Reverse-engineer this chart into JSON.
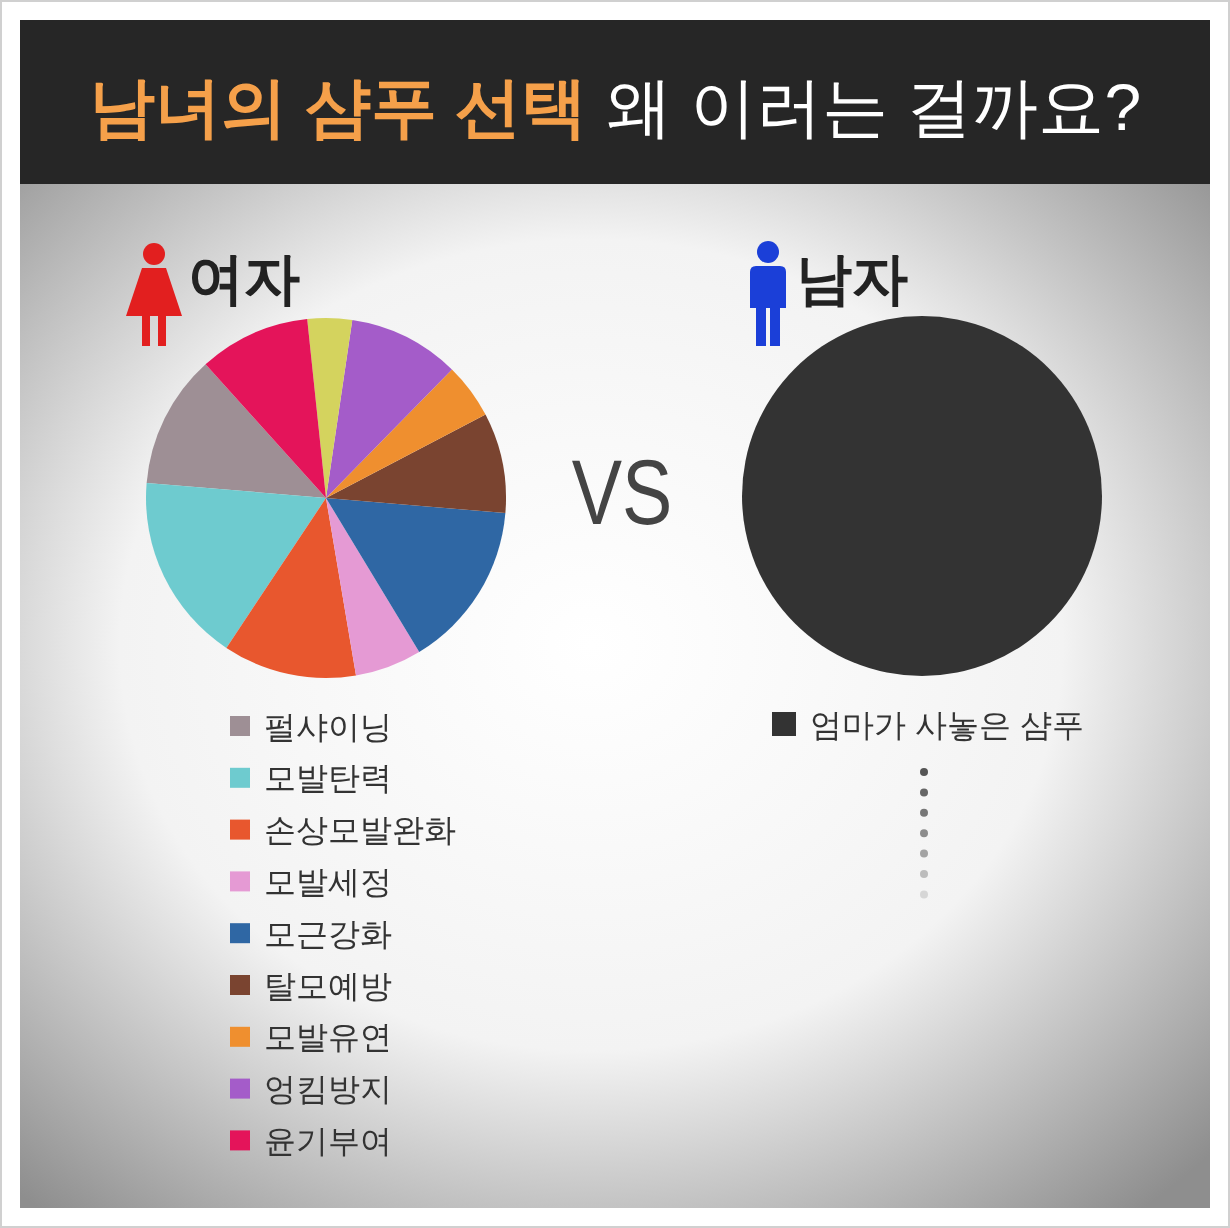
{
  "chart_data": [
    {
      "type": "other",
      "title": "**남녀의 샴푸 선택** 왜 이러는 걸까요?"
    },
    {
      "type": "pie",
      "title": "여자",
      "categories": [
        "펄샤이닝",
        "모발탄력",
        "손상모발완화",
        "모발세정",
        "모근강화",
        "탈모예방",
        "모발유연",
        "엉킴방지",
        null,
        "윤기부여"
      ],
      "values": [
        12,
        17,
        12,
        6,
        15,
        9,
        5,
        10,
        4,
        10
      ],
      "colors": [
        "#9e8f95",
        "#6ecbcf",
        "#e8572e",
        "#e59ad4",
        "#2f67a4",
        "#7a4430",
        "#ef8f2f",
        "#a45cc9",
        "#d4d35e",
        "#e4145a"
      ],
      "legend": "bottom",
      "annotations": [
        "VS"
      ]
    },
    {
      "type": "pie",
      "title": "남자",
      "categories": [
        "엄마가 사놓은 샴푸"
      ],
      "values": [
        100
      ],
      "colors": [
        "#333333"
      ],
      "legend": "bottom"
    }
  ]
}
